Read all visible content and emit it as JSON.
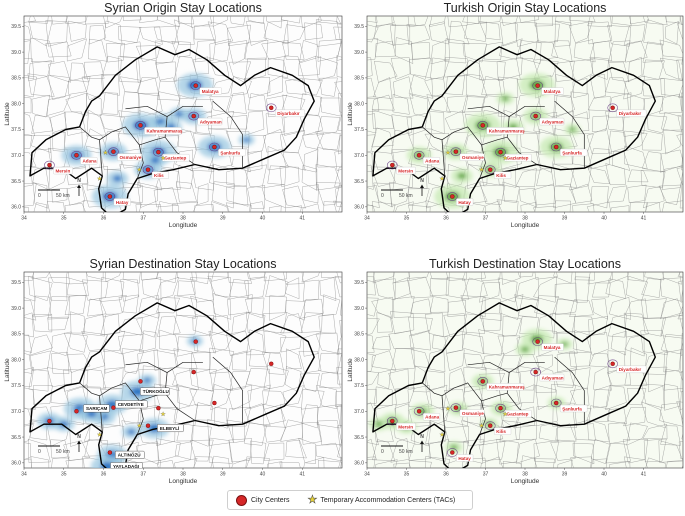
{
  "panels": [
    {
      "id": "syrian-origin",
      "title": "Syrian Origin Stay Locations",
      "theme": "blue",
      "show_city_labels": true,
      "show_district_labels": false,
      "show_scalebar": true
    },
    {
      "id": "turkish-origin",
      "title": "Turkish Origin Stay Locations",
      "theme": "green",
      "show_city_labels": true,
      "show_district_labels": false,
      "show_scalebar": true
    },
    {
      "id": "syrian-destination",
      "title": "Syrian Destination Stay Locations",
      "theme": "blue",
      "show_city_labels": false,
      "show_district_labels": true,
      "show_scalebar": true
    },
    {
      "id": "turkish-destination",
      "title": "Turkish Destination Stay Locations",
      "theme": "green",
      "show_city_labels": true,
      "show_district_labels": false,
      "show_scalebar": true
    }
  ],
  "axes": {
    "xlabel": "Longitude",
    "ylabel": "Latitude",
    "xlim": [
      34,
      42
    ],
    "ylim": [
      35.9,
      39.7
    ],
    "xticks": [
      "34",
      "35",
      "36",
      "37",
      "38",
      "39",
      "40",
      "41"
    ],
    "yticks": [
      "36.0",
      "36.5",
      "37.0",
      "37.5",
      "38.0",
      "38.5",
      "39.0",
      "39.5"
    ]
  },
  "scalebar": {
    "start_label": "0",
    "end_label": "50 km",
    "north_label": "N"
  },
  "cities": [
    {
      "name": "Malatya",
      "lon": 38.32,
      "lat": 38.35
    },
    {
      "name": "Diyarbakır",
      "lon": 40.22,
      "lat": 37.92
    },
    {
      "name": "Adıyaman",
      "lon": 38.27,
      "lat": 37.76
    },
    {
      "name": "Kahramanmaraş",
      "lon": 36.93,
      "lat": 37.58
    },
    {
      "name": "Şanlıurfa",
      "lon": 38.79,
      "lat": 37.16
    },
    {
      "name": "Osmaniye",
      "lon": 36.25,
      "lat": 37.07
    },
    {
      "name": "Gaziantep",
      "lon": 37.38,
      "lat": 37.06
    },
    {
      "name": "Adana",
      "lon": 35.32,
      "lat": 37.0
    },
    {
      "name": "Mersin",
      "lon": 34.64,
      "lat": 36.81
    },
    {
      "name": "Kilis",
      "lon": 37.12,
      "lat": 36.72
    },
    {
      "name": "Hatay",
      "lon": 36.16,
      "lat": 36.2
    }
  ],
  "tacs": [
    {
      "lon": 36.05,
      "lat": 37.05
    },
    {
      "lon": 36.9,
      "lat": 36.72
    },
    {
      "lon": 37.5,
      "lat": 36.95
    },
    {
      "lon": 35.9,
      "lat": 36.55
    }
  ],
  "destination_districts": [
    {
      "name": "TÜRKOĞLU",
      "lon": 36.85,
      "lat": 37.38
    },
    {
      "name": "CEVDETİYE",
      "lon": 36.22,
      "lat": 37.13
    },
    {
      "name": "SARIÇAM",
      "lon": 35.42,
      "lat": 37.05
    },
    {
      "name": "ELBEYLİ",
      "lon": 37.28,
      "lat": 36.67
    },
    {
      "name": "ALTINÖZÜ",
      "lon": 36.22,
      "lat": 36.15
    },
    {
      "name": "YAYLADAĞI",
      "lon": 36.1,
      "lat": 35.93
    }
  ],
  "legend": {
    "city_centers": "City Centers",
    "tacs": "Temporary Accommodation Centers (TACs)"
  },
  "colors": {
    "blue_hot": "#1565c0",
    "blue_light": "#9ecae1",
    "green_hot": "#4c9a2a",
    "green_light": "#c7e9b4",
    "city_marker": "#d62728",
    "region_boundary": "#000000",
    "district_lines": "#888888"
  }
}
